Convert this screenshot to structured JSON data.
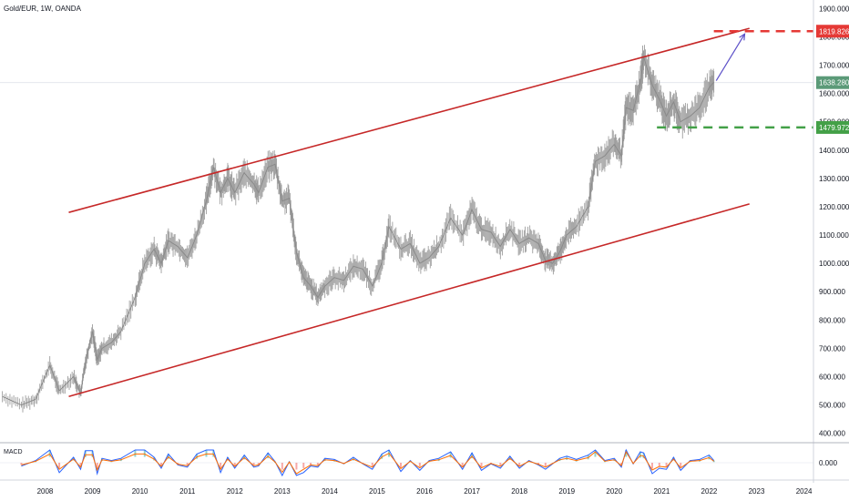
{
  "header": {
    "title": "Gold/EUR, 1W, OANDA"
  },
  "macd": {
    "label": "MACD",
    "tick_label": "0.000"
  },
  "colors": {
    "candles": "#9e9e9e",
    "channel": "#c62828",
    "target": "#e53935",
    "support": "#43a047",
    "current": "#5b9a78",
    "arrow": "#5c50c8",
    "macd_line": "#2962ff",
    "signal_line": "#ff6d00"
  },
  "chart_data": {
    "type": "line",
    "series": [
      {
        "x": [
          2007.1,
          2007.5,
          2007.8,
          2008.1,
          2008.3,
          2008.6,
          2008.75,
          2008.85,
          2009.0,
          2009.1,
          2009.2,
          2009.4,
          2009.6,
          2009.9,
          2010.1,
          2010.3,
          2010.45,
          2010.6,
          2010.8,
          2011.0,
          2011.2,
          2011.4,
          2011.55,
          2011.7,
          2011.85,
          2012.0,
          2012.2,
          2012.4,
          2012.5,
          2012.7,
          2012.85,
          2013.0,
          2013.15,
          2013.3,
          2013.45,
          2013.6,
          2013.75,
          2013.9,
          2014.1,
          2014.3,
          2014.5,
          2014.7,
          2014.9,
          2015.1,
          2015.25,
          2015.5,
          2015.7,
          2015.9,
          2016.1,
          2016.3,
          2016.55,
          2016.8,
          2017.0,
          2017.2,
          2017.4,
          2017.6,
          2017.8,
          2018.0,
          2018.2,
          2018.4,
          2018.55,
          2018.7,
          2018.85,
          2019.0,
          2019.2,
          2019.45,
          2019.6,
          2019.8,
          2020.0,
          2020.15,
          2020.25,
          2020.4,
          2020.55,
          2020.62,
          2020.8,
          2020.95,
          2021.1,
          2021.25,
          2021.4,
          2021.6,
          2021.8,
          2022.0,
          2022.1
        ],
        "y": [
          530,
          500,
          520,
          640,
          550,
          600,
          540,
          650,
          760,
          660,
          700,
          720,
          760,
          880,
          1000,
          1050,
          1000,
          1080,
          1060,
          1020,
          1100,
          1220,
          1340,
          1250,
          1300,
          1250,
          1320,
          1280,
          1250,
          1340,
          1350,
          1220,
          1230,
          1040,
          950,
          920,
          880,
          920,
          950,
          940,
          990,
          980,
          920,
          1000,
          1130,
          1050,
          1070,
          1000,
          1020,
          1060,
          1160,
          1100,
          1190,
          1120,
          1110,
          1060,
          1120,
          1070,
          1090,
          1070,
          1010,
          1000,
          1040,
          1100,
          1130,
          1200,
          1360,
          1380,
          1420,
          1380,
          1550,
          1540,
          1640,
          1730,
          1630,
          1580,
          1520,
          1570,
          1500,
          1520,
          1550,
          1620,
          1640
        ]
      }
    ],
    "y_ticks": [
      "400.000",
      "500.000",
      "600.000",
      "700.000",
      "800.000",
      "900.000",
      "1000.000",
      "1100.000",
      "1200.000",
      "1300.000",
      "1400.000",
      "1500.000",
      "1600.000",
      "1700.000",
      "1800.000",
      "1900.000"
    ],
    "x_ticks": [
      "2008",
      "2009",
      "2010",
      "2011",
      "2012",
      "2013",
      "2014",
      "2015",
      "2016",
      "2017",
      "2018",
      "2019",
      "2020",
      "2021",
      "2022",
      "2023",
      "2024"
    ],
    "xlim": [
      2007.05,
      2024.2
    ],
    "ylim": [
      370,
      1930
    ],
    "channel_upper": {
      "x": [
        2008.5,
        2022.85
      ],
      "y": [
        1180,
        1830
      ]
    },
    "channel_lower": {
      "x": [
        2008.5,
        2022.85
      ],
      "y": [
        530,
        1210
      ]
    },
    "target_level": {
      "value": 1819.826,
      "label": "1819.826",
      "x_start": 2022.1
    },
    "support_level": {
      "value": 1479.972,
      "label": "1479.972",
      "x_start": 2020.9
    },
    "current_price": {
      "value": 1638.28,
      "label": "1638.280"
    },
    "projection_arrow": {
      "x": [
        2022.15,
        2022.75
      ],
      "y": [
        1645,
        1810
      ]
    },
    "grid": false,
    "legend": "none"
  }
}
